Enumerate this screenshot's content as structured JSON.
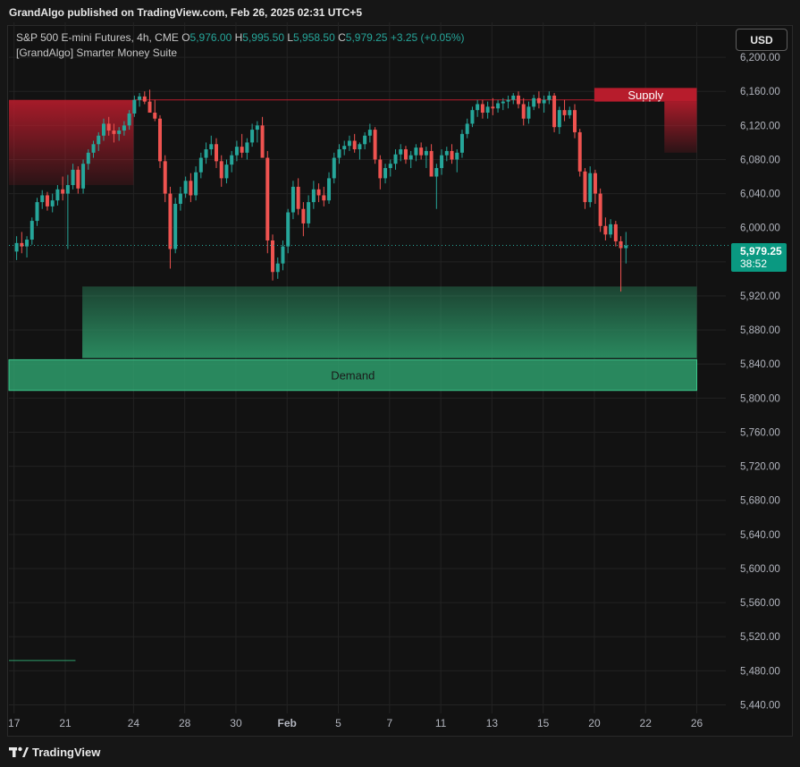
{
  "header": {
    "publisher_line": "GrandAlgo published on TradingView.com, Feb 26, 2025 02:31 UTC+5"
  },
  "legend": {
    "symbol": "S&P 500 E-mini Futures, 4h, CME",
    "o_label": "O",
    "o_value": "5,976.00",
    "h_label": "H",
    "h_value": "5,995.50",
    "l_label": "L",
    "l_value": "5,958.50",
    "c_label": "C",
    "c_value": "5,979.25",
    "change": "+3.25 (+0.05%)",
    "indicator": "[GrandAlgo] Smarter Money Suite"
  },
  "currency_button": "USD",
  "last_price": {
    "price": "5,979.25",
    "countdown": "38:52"
  },
  "footer": {
    "brand": "TradingView"
  },
  "colors": {
    "up": "#26a69a",
    "down": "#ef5350",
    "supply": "#b71c2c",
    "demand": "#2e9e6c",
    "background": "#121212",
    "grid": "#232323"
  },
  "chart_data": {
    "type": "candlestick",
    "interval": "4h",
    "y_axis": {
      "ylim": [
        5430,
        6220
      ],
      "ticks": [
        6200,
        6160,
        6120,
        6080,
        6040,
        6000,
        5960,
        5920,
        5880,
        5840,
        5800,
        5760,
        5720,
        5680,
        5640,
        5600,
        5560,
        5520,
        5480,
        5440
      ],
      "tick_labels": [
        "6,200.00",
        "6,160.00",
        "6,120.00",
        "6,080.00",
        "6,040.00",
        "6,000.00",
        "5,960.00",
        "5,920.00",
        "5,880.00",
        "5,840.00",
        "5,800.00",
        "5,760.00",
        "5,720.00",
        "5,680.00",
        "5,640.00",
        "5,600.00",
        "5,560.00",
        "5,520.00",
        "5,480.00",
        "5,440.00"
      ]
    },
    "x_axis": {
      "xlim": [
        -0.1,
        13.9
      ],
      "ticks": [
        0,
        1,
        2.333,
        3.333,
        4.333,
        5.333,
        6.333,
        7.333,
        8.333,
        9.333,
        10.333,
        11.333,
        12.333,
        13.333
      ],
      "tick_labels": [
        "17",
        "21",
        "24",
        "28",
        "30",
        "Feb",
        "5",
        "7",
        "11",
        "13",
        "15",
        "20",
        "22",
        "26"
      ]
    },
    "grid": true,
    "last_price": 5979.25,
    "zones": [
      {
        "label": "",
        "type": "supply",
        "x0": -0.1,
        "x1": 2.333,
        "y_top": 6150,
        "y_bottom": 6050
      },
      {
        "label": "Supply",
        "type": "supply",
        "x0": 11.333,
        "x1": 13.333,
        "y_top": 6164,
        "y_bottom": 6148
      },
      {
        "label": "",
        "type": "supply-fade",
        "x0": 12.7,
        "x1": 13.333,
        "y_top": 6148,
        "y_bottom": 6088
      },
      {
        "label": "",
        "type": "demand-fade",
        "x0": 1.333,
        "x1": 13.333,
        "y_top": 5931,
        "y_bottom": 5847
      },
      {
        "label": "Demand",
        "type": "demand",
        "x0": -0.1,
        "x1": 13.333,
        "y_top": 5845,
        "y_bottom": 5809
      }
    ],
    "lines": [
      {
        "x0": 2.333,
        "x1": 13.333,
        "y": 6150,
        "color": "supply"
      },
      {
        "x0": -0.1,
        "x1": 1.2,
        "y": 5492,
        "color": "demand"
      }
    ],
    "candles": [
      [
        0.05,
        5972,
        5990,
        5962,
        5982
      ],
      [
        0.15,
        5982,
        5995,
        5970,
        5978
      ],
      [
        0.25,
        5978,
        5990,
        5965,
        5986
      ],
      [
        0.35,
        5986,
        6012,
        5980,
        6008
      ],
      [
        0.45,
        6008,
        6035,
        6002,
        6030
      ],
      [
        0.55,
        6030,
        6044,
        6022,
        6038
      ],
      [
        0.65,
        6038,
        6042,
        6020,
        6025
      ],
      [
        0.75,
        6025,
        6040,
        6018,
        6032
      ],
      [
        0.85,
        6032,
        6050,
        6026,
        6045
      ],
      [
        0.95,
        6045,
        6060,
        6032,
        6040
      ],
      [
        1.05,
        6040,
        6062,
        5975,
        6050
      ],
      [
        1.15,
        6050,
        6075,
        6045,
        6068
      ],
      [
        1.25,
        6068,
        6072,
        6040,
        6046
      ],
      [
        1.35,
        6046,
        6080,
        6040,
        6075
      ],
      [
        1.45,
        6075,
        6092,
        6068,
        6088
      ],
      [
        1.55,
        6088,
        6102,
        6082,
        6098
      ],
      [
        1.65,
        6098,
        6112,
        6090,
        6108
      ],
      [
        1.75,
        6108,
        6128,
        6102,
        6122
      ],
      [
        1.85,
        6122,
        6130,
        6108,
        6114
      ],
      [
        1.95,
        6114,
        6122,
        6100,
        6110
      ],
      [
        2.05,
        6110,
        6118,
        6102,
        6114
      ],
      [
        2.15,
        6114,
        6125,
        6108,
        6120
      ],
      [
        2.25,
        6120,
        6138,
        6115,
        6134
      ],
      [
        2.35,
        6134,
        6155,
        6130,
        6150
      ],
      [
        2.45,
        6150,
        6158,
        6142,
        6154
      ],
      [
        2.55,
        6154,
        6160,
        6145,
        6148
      ],
      [
        2.65,
        6148,
        6162,
        6140,
        6135
      ],
      [
        2.75,
        6135,
        6150,
        6125,
        6128
      ],
      [
        2.85,
        6128,
        6132,
        6070,
        6078
      ],
      [
        2.95,
        6078,
        6085,
        6030,
        6040
      ],
      [
        3.05,
        6040,
        6048,
        5952,
        5975
      ],
      [
        3.15,
        5975,
        6035,
        5970,
        6028
      ],
      [
        3.25,
        6028,
        6048,
        6020,
        6040
      ],
      [
        3.35,
        6040,
        6060,
        6035,
        6055
      ],
      [
        3.45,
        6055,
        6064,
        6030,
        6038
      ],
      [
        3.55,
        6038,
        6072,
        6032,
        6065
      ],
      [
        3.65,
        6065,
        6088,
        6058,
        6082
      ],
      [
        3.75,
        6082,
        6100,
        6075,
        6092
      ],
      [
        3.85,
        6092,
        6108,
        6085,
        6098
      ],
      [
        3.95,
        6098,
        6105,
        6070,
        6078
      ],
      [
        4.05,
        6078,
        6085,
        6048,
        6058
      ],
      [
        4.15,
        6058,
        6080,
        6052,
        6074
      ],
      [
        4.25,
        6074,
        6090,
        6065,
        6085
      ],
      [
        4.35,
        6085,
        6102,
        6078,
        6095
      ],
      [
        4.45,
        6095,
        6110,
        6082,
        6088
      ],
      [
        4.55,
        6088,
        6105,
        6080,
        6100
      ],
      [
        4.65,
        6100,
        6122,
        6095,
        6115
      ],
      [
        4.75,
        6115,
        6125,
        6100,
        6120
      ],
      [
        4.85,
        6120,
        6130,
        6085,
        6082
      ],
      [
        4.95,
        6082,
        6090,
        5970,
        5985
      ],
      [
        5.05,
        5985,
        5992,
        5938,
        5948
      ],
      [
        5.15,
        5948,
        5965,
        5940,
        5958
      ],
      [
        5.25,
        5958,
        5985,
        5950,
        5978
      ],
      [
        5.35,
        5978,
        6022,
        5970,
        6018
      ],
      [
        5.45,
        6018,
        6055,
        6010,
        6048
      ],
      [
        5.55,
        6048,
        6058,
        6015,
        6022
      ],
      [
        5.65,
        6022,
        6030,
        5990,
        6005
      ],
      [
        5.75,
        6005,
        6038,
        6000,
        6030
      ],
      [
        5.85,
        6030,
        6055,
        6022,
        6045
      ],
      [
        5.95,
        6045,
        6052,
        6030,
        6038
      ],
      [
        6.05,
        6038,
        6048,
        6025,
        6032
      ],
      [
        6.15,
        6032,
        6065,
        6028,
        6058
      ],
      [
        6.25,
        6058,
        6088,
        6052,
        6082
      ],
      [
        6.35,
        6082,
        6098,
        6075,
        6092
      ],
      [
        6.45,
        6092,
        6102,
        6085,
        6096
      ],
      [
        6.55,
        6096,
        6108,
        6090,
        6102
      ],
      [
        6.65,
        6102,
        6110,
        6088,
        6092
      ],
      [
        6.75,
        6092,
        6100,
        6080,
        6098
      ],
      [
        6.85,
        6098,
        6112,
        6092,
        6108
      ],
      [
        6.95,
        6108,
        6122,
        6100,
        6115
      ],
      [
        7.05,
        6115,
        6118,
        6075,
        6080
      ],
      [
        7.15,
        6080,
        6085,
        6045,
        6058
      ],
      [
        7.25,
        6058,
        6075,
        6052,
        6070
      ],
      [
        7.35,
        6070,
        6080,
        6060,
        6075
      ],
      [
        7.45,
        6075,
        6092,
        6068,
        6086
      ],
      [
        7.55,
        6086,
        6098,
        6078,
        6092
      ],
      [
        7.65,
        6092,
        6096,
        6075,
        6080
      ],
      [
        7.75,
        6080,
        6090,
        6070,
        6085
      ],
      [
        7.85,
        6085,
        6098,
        6078,
        6094
      ],
      [
        7.95,
        6094,
        6100,
        6080,
        6085
      ],
      [
        8.05,
        6085,
        6095,
        6070,
        6090
      ],
      [
        8.15,
        6090,
        6098,
        6065,
        6060
      ],
      [
        8.25,
        6060,
        6075,
        6022,
        6070
      ],
      [
        8.35,
        6070,
        6092,
        6062,
        6085
      ],
      [
        8.45,
        6085,
        6095,
        6078,
        6090
      ],
      [
        8.55,
        6090,
        6098,
        6075,
        6080
      ],
      [
        8.65,
        6080,
        6092,
        6065,
        6088
      ],
      [
        8.75,
        6088,
        6115,
        6082,
        6110
      ],
      [
        8.85,
        6110,
        6128,
        6105,
        6122
      ],
      [
        8.95,
        6122,
        6142,
        6118,
        6138
      ],
      [
        9.05,
        6138,
        6150,
        6130,
        6145
      ],
      [
        9.15,
        6145,
        6150,
        6128,
        6135
      ],
      [
        9.25,
        6135,
        6148,
        6128,
        6142
      ],
      [
        9.35,
        6142,
        6152,
        6132,
        6140
      ],
      [
        9.45,
        6140,
        6150,
        6135,
        6146
      ],
      [
        9.55,
        6146,
        6152,
        6138,
        6148
      ],
      [
        9.65,
        6148,
        6155,
        6140,
        6150
      ],
      [
        9.75,
        6150,
        6158,
        6145,
        6155
      ],
      [
        9.85,
        6155,
        6160,
        6140,
        6145
      ],
      [
        9.95,
        6145,
        6152,
        6120,
        6128
      ],
      [
        10.05,
        6128,
        6148,
        6122,
        6142
      ],
      [
        10.15,
        6142,
        6156,
        6138,
        6152
      ],
      [
        10.25,
        6152,
        6160,
        6140,
        6146
      ],
      [
        10.35,
        6146,
        6155,
        6135,
        6150
      ],
      [
        10.45,
        6150,
        6160,
        6145,
        6155
      ],
      [
        10.55,
        6155,
        6158,
        6112,
        6118
      ],
      [
        10.65,
        6118,
        6142,
        6110,
        6138
      ],
      [
        10.75,
        6138,
        6150,
        6125,
        6132
      ],
      [
        10.85,
        6132,
        6142,
        6128,
        6138
      ],
      [
        10.95,
        6138,
        6145,
        6105,
        6112
      ],
      [
        11.05,
        6112,
        6116,
        6060,
        6066
      ],
      [
        11.15,
        6066,
        6070,
        6022,
        6030
      ],
      [
        11.25,
        6030,
        6072,
        6024,
        6064
      ],
      [
        11.35,
        6064,
        6068,
        6028,
        6040
      ],
      [
        11.45,
        6040,
        6046,
        5995,
        6002
      ],
      [
        11.55,
        6002,
        6012,
        5985,
        5992
      ],
      [
        11.65,
        5992,
        6010,
        5988,
        6004
      ],
      [
        11.75,
        6004,
        6008,
        5978,
        5984
      ],
      [
        11.85,
        5984,
        5990,
        5925,
        5976
      ],
      [
        11.95,
        5976,
        5995,
        5958,
        5979
      ]
    ]
  }
}
